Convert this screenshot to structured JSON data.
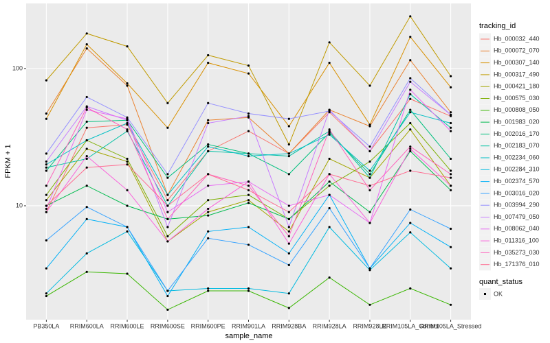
{
  "chart_data": {
    "type": "line",
    "log_y": true,
    "grid": true,
    "legend_position": "right",
    "x_label": "sample_name",
    "y_label": "FPKM + 1",
    "legend_title": "tracking_id",
    "shape_legend": {
      "title": "quant_status",
      "levels": [
        "OK"
      ]
    },
    "categories": [
      "PB350LA",
      "RRIM600LA",
      "RRIM600LE",
      "RRIM600SE",
      "RRIM600PE",
      "RRIM901LA",
      "RRIM928BA",
      "RRIM928LA",
      "RRIM928LE",
      "RRIM105LA_Control",
      "RRIM105LA_Stressed"
    ],
    "ylim": [
      1.48,
      298
    ],
    "yticks": [
      10,
      100
    ],
    "series": [
      {
        "name": "Hb_000032_440",
        "color": "#F8766D",
        "values": [
          9,
          37,
          39,
          11,
          25,
          35,
          24,
          48,
          25,
          60,
          45
        ]
      },
      {
        "name": "Hb_000072_070",
        "color": "#EA8331",
        "values": [
          47,
          140,
          75,
          12,
          42,
          44,
          24,
          50,
          38,
          115,
          48
        ]
      },
      {
        "name": "Hb_000307_140",
        "color": "#D89000",
        "values": [
          43,
          150,
          78,
          37,
          110,
          92,
          38,
          110,
          39,
          170,
          73
        ]
      },
      {
        "name": "Hb_000317_490",
        "color": "#C09B00",
        "values": [
          82,
          180,
          145,
          56,
          125,
          105,
          28,
          155,
          75,
          240,
          88
        ]
      },
      {
        "name": "Hb_000421_180",
        "color": "#A3A500",
        "values": [
          11,
          26,
          21,
          5.5,
          9,
          11,
          6.5,
          22,
          16,
          36,
          14
        ]
      },
      {
        "name": "Hb_000575_030",
        "color": "#7CAE00",
        "values": [
          12,
          30,
          22,
          6,
          11,
          12,
          8,
          14,
          21,
          40,
          18
        ]
      },
      {
        "name": "Hb_000808_050",
        "color": "#39B600",
        "values": [
          2.2,
          3.3,
          3.2,
          1.75,
          2.4,
          2.4,
          1.8,
          3,
          1.9,
          2.5,
          1.9
        ]
      },
      {
        "name": "Hb_001983_020",
        "color": "#00BB4E",
        "values": [
          10,
          14,
          10,
          8,
          8.5,
          10.5,
          8,
          15,
          9,
          25,
          13
        ]
      },
      {
        "name": "Hb_002016_170",
        "color": "#00BF7D",
        "values": [
          18,
          41,
          42,
          16,
          28,
          24,
          17,
          34,
          17,
          50,
          22
        ]
      },
      {
        "name": "Hb_002183_070",
        "color": "#00C1A3",
        "values": [
          19,
          22,
          35,
          10,
          25,
          24,
          23,
          35,
          16,
          65,
          37
        ]
      },
      {
        "name": "Hb_002234_060",
        "color": "#00BFC4",
        "values": [
          20,
          30,
          40,
          12,
          27,
          23,
          24,
          33,
          18,
          48,
          40
        ]
      },
      {
        "name": "Hb_002284_310",
        "color": "#00BAE0",
        "values": [
          2.3,
          4.5,
          6.5,
          2.4,
          2.5,
          2.5,
          2.3,
          7,
          3.4,
          6.4,
          3.5
        ]
      },
      {
        "name": "Hb_002374_570",
        "color": "#00B0F6",
        "values": [
          3.5,
          8,
          7,
          2.2,
          6.5,
          7,
          4.5,
          12,
          3.5,
          7.5,
          5
        ]
      },
      {
        "name": "Hb_003016_020",
        "color": "#35A2FF",
        "values": [
          5.6,
          9.8,
          7,
          2.4,
          5.8,
          5.2,
          3.7,
          9.6,
          3.5,
          9.4,
          6.8
        ]
      },
      {
        "name": "Hb_003994_290",
        "color": "#9590FF",
        "values": [
          24,
          62,
          44,
          17,
          56,
          47,
          43,
          49,
          27,
          85,
          46
        ]
      },
      {
        "name": "Hb_007479_050",
        "color": "#C77CFF",
        "values": [
          21,
          53,
          42,
          7,
          40,
          45,
          7,
          50,
          25,
          80,
          46
        ]
      },
      {
        "name": "Hb_008062_040",
        "color": "#E76BF3",
        "values": [
          9.5,
          50,
          43,
          9,
          14,
          15,
          10,
          12,
          7.5,
          70,
          35
        ]
      },
      {
        "name": "Hb_011316_100",
        "color": "#FA62DB",
        "values": [
          9,
          23,
          13,
          5.5,
          9.5,
          15,
          5.3,
          17,
          7.5,
          26,
          14
        ]
      },
      {
        "name": "Hb_035273_030",
        "color": "#FF62BC",
        "values": [
          14,
          52,
          36,
          8,
          17,
          14,
          6,
          36,
          13,
          27,
          17
        ]
      },
      {
        "name": "Hb_171376_010",
        "color": "#FF6C91",
        "values": [
          10,
          19,
          20,
          10,
          17,
          13,
          9,
          17,
          14,
          18,
          16
        ]
      }
    ]
  }
}
